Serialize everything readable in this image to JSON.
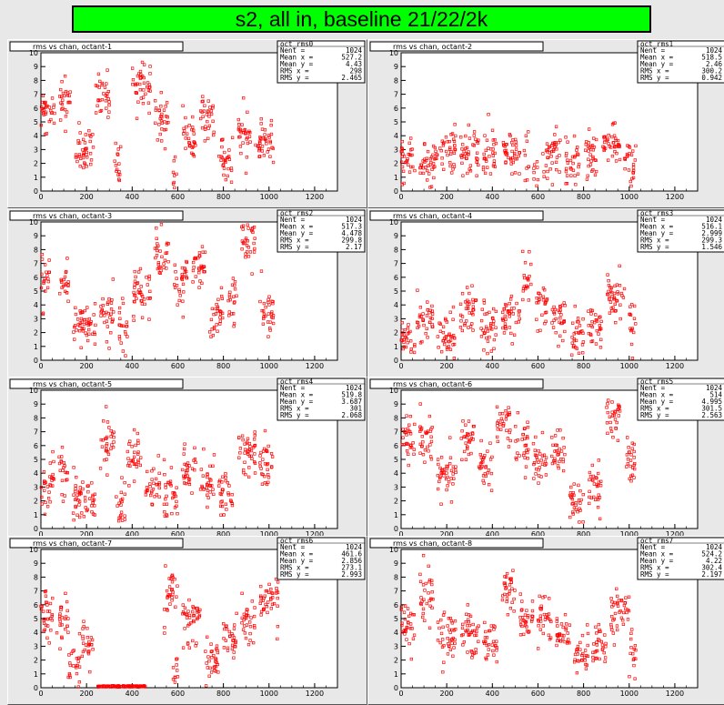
{
  "banner_title": "s2, all in, baseline 21/22/2k",
  "colors": {
    "banner_bg": "#00ff00",
    "marker": "#ff0000",
    "frame_bg": "#e8e8e8",
    "plot_bg": "#ffffff"
  },
  "stat_labels": [
    "Nent =",
    "Mean x =",
    "Mean y =",
    "RMS x =",
    "RMS y ="
  ],
  "axes": {
    "xticks": [
      "0",
      "200",
      "400",
      "600",
      "800",
      "1000",
      "1200"
    ],
    "yticks": [
      "0",
      "1",
      "2",
      "3",
      "4",
      "5",
      "6",
      "7",
      "8",
      "9",
      "10"
    ],
    "xlim": [
      0,
      1300
    ],
    "ylim": [
      0,
      10
    ]
  },
  "chart_data": [
    {
      "type": "scatter",
      "title": "rms vs chan, octant-1",
      "hist_name": "oct_rms0",
      "stats": [
        "1024",
        "527.2",
        "4.43",
        "298",
        "2.465"
      ],
      "clusters": [
        [
          0,
          60,
          5.5
        ],
        [
          80,
          130,
          6.8
        ],
        [
          150,
          230,
          3.0
        ],
        [
          240,
          300,
          6.5
        ],
        [
          320,
          350,
          2.0
        ],
        [
          400,
          480,
          7.8
        ],
        [
          500,
          560,
          5.5
        ],
        [
          580,
          600,
          1.3
        ],
        [
          620,
          680,
          4.0
        ],
        [
          700,
          760,
          5.5
        ],
        [
          780,
          840,
          2.0
        ],
        [
          860,
          920,
          4.0
        ],
        [
          940,
          1020,
          3.6
        ]
      ],
      "xlim": [
        0,
        1300
      ],
      "ylim": [
        0,
        10
      ]
    },
    {
      "type": "scatter",
      "title": "rms vs chan, octant-2",
      "hist_name": "oct_rms1",
      "stats": [
        "1024",
        "518.5",
        "2.46",
        "300.2",
        "0.942"
      ],
      "clusters": [
        [
          0,
          60,
          2.4
        ],
        [
          80,
          160,
          2.2
        ],
        [
          170,
          240,
          2.7
        ],
        [
          260,
          340,
          2.8
        ],
        [
          360,
          420,
          2.5
        ],
        [
          440,
          520,
          3.0
        ],
        [
          540,
          560,
          2.4
        ],
        [
          580,
          600,
          1.0
        ],
        [
          620,
          700,
          2.8
        ],
        [
          720,
          780,
          2.0
        ],
        [
          800,
          860,
          2.6
        ],
        [
          880,
          960,
          3.6
        ],
        [
          980,
          1030,
          2.5
        ]
      ],
      "xlim": [
        0,
        1300
      ],
      "ylim": [
        0,
        10
      ]
    },
    {
      "type": "scatter",
      "title": "rms vs chan, octant-3",
      "hist_name": "oct_rms2",
      "stats": [
        "1024",
        "517.3",
        "4.478",
        "299.8",
        "2.17"
      ],
      "clusters": [
        [
          0,
          40,
          5.8
        ],
        [
          80,
          120,
          5.5
        ],
        [
          140,
          240,
          3.0
        ],
        [
          260,
          320,
          3.5
        ],
        [
          340,
          380,
          2.0
        ],
        [
          400,
          480,
          4.8
        ],
        [
          500,
          560,
          7.5
        ],
        [
          580,
          640,
          5.5
        ],
        [
          660,
          720,
          6.8
        ],
        [
          740,
          800,
          3.2
        ],
        [
          820,
          860,
          4.2
        ],
        [
          880,
          940,
          8.6
        ],
        [
          960,
          1020,
          3.8
        ]
      ],
      "xlim": [
        0,
        1300
      ],
      "ylim": [
        0,
        10
      ]
    },
    {
      "type": "scatter",
      "title": "rms vs chan, octant-4",
      "hist_name": "oct_rms3",
      "stats": [
        "1024",
        "516.1",
        "2.999",
        "299.3",
        "1.546"
      ],
      "clusters": [
        [
          0,
          60,
          1.5
        ],
        [
          70,
          140,
          3.0
        ],
        [
          160,
          240,
          2.0
        ],
        [
          260,
          330,
          3.5
        ],
        [
          350,
          420,
          2.5
        ],
        [
          440,
          520,
          3.0
        ],
        [
          530,
          570,
          5.5
        ],
        [
          590,
          640,
          4.0
        ],
        [
          660,
          720,
          3.0
        ],
        [
          740,
          800,
          2.0
        ],
        [
          820,
          880,
          2.6
        ],
        [
          900,
          980,
          4.5
        ],
        [
          1000,
          1030,
          3.0
        ]
      ],
      "xlim": [
        0,
        1300
      ],
      "ylim": [
        0,
        10
      ]
    },
    {
      "type": "scatter",
      "title": "rms vs chan, octant-5",
      "hist_name": "oct_rms4",
      "stats": [
        "1024",
        "519.8",
        "3.687",
        "301",
        "2.068"
      ],
      "clusters": [
        [
          0,
          60,
          3.0
        ],
        [
          80,
          120,
          3.8
        ],
        [
          140,
          240,
          2.0
        ],
        [
          260,
          320,
          6.0
        ],
        [
          330,
          370,
          1.5
        ],
        [
          380,
          440,
          5.2
        ],
        [
          460,
          520,
          2.8
        ],
        [
          540,
          600,
          2.3
        ],
        [
          620,
          680,
          4.2
        ],
        [
          700,
          760,
          3.5
        ],
        [
          780,
          840,
          2.2
        ],
        [
          860,
          940,
          5.5
        ],
        [
          960,
          1020,
          4.5
        ]
      ],
      "xlim": [
        0,
        1300
      ],
      "ylim": [
        0,
        10
      ]
    },
    {
      "type": "scatter",
      "title": "rms vs chan, octant-6",
      "hist_name": "oct_rms5",
      "stats": [
        "1024",
        "514",
        "4.995",
        "301.5",
        "2.563"
      ],
      "clusters": [
        [
          0,
          60,
          6.5
        ],
        [
          80,
          140,
          6.5
        ],
        [
          160,
          240,
          4.0
        ],
        [
          260,
          320,
          6.5
        ],
        [
          340,
          400,
          4.5
        ],
        [
          420,
          480,
          7.5
        ],
        [
          500,
          560,
          6.0
        ],
        [
          580,
          640,
          5.0
        ],
        [
          660,
          720,
          5.5
        ],
        [
          740,
          800,
          2.0
        ],
        [
          820,
          880,
          3.0
        ],
        [
          900,
          960,
          8.0
        ],
        [
          980,
          1030,
          5.0
        ]
      ],
      "xlim": [
        0,
        1300
      ],
      "ylim": [
        0,
        10
      ]
    },
    {
      "type": "scatter",
      "title": "rms vs chan, octant-7",
      "hist_name": "oct_rms6",
      "stats": [
        "1024",
        "461.6",
        "2.856",
        "273.1",
        "2.993"
      ],
      "clusters": [
        [
          0,
          60,
          5.5
        ],
        [
          70,
          120,
          5.0
        ],
        [
          120,
          170,
          1.8
        ],
        [
          180,
          230,
          3.2
        ],
        [
          250,
          460,
          0.1
        ],
        [
          580,
          600,
          1.0
        ],
        [
          540,
          600,
          7.0
        ],
        [
          620,
          700,
          5.0
        ],
        [
          720,
          780,
          2.0
        ],
        [
          800,
          860,
          3.5
        ],
        [
          880,
          940,
          5.2
        ],
        [
          960,
          1040,
          6.5
        ]
      ],
      "xlim": [
        0,
        1300
      ],
      "ylim": [
        0,
        10
      ]
    },
    {
      "type": "scatter",
      "title": "rms vs chan, octant-8",
      "hist_name": "oct_rms7",
      "stats": [
        "1024",
        "524.2",
        "4.22",
        "302.4",
        "2.197"
      ],
      "clusters": [
        [
          0,
          60,
          4.5
        ],
        [
          80,
          140,
          6.5
        ],
        [
          160,
          240,
          3.5
        ],
        [
          260,
          340,
          4.0
        ],
        [
          360,
          420,
          3.5
        ],
        [
          440,
          500,
          7.0
        ],
        [
          520,
          580,
          5.0
        ],
        [
          600,
          660,
          5.0
        ],
        [
          680,
          740,
          3.8
        ],
        [
          760,
          820,
          2.2
        ],
        [
          840,
          900,
          3.0
        ],
        [
          920,
          1000,
          5.5
        ],
        [
          1000,
          1030,
          2.5
        ]
      ],
      "xlim": [
        0,
        1300
      ],
      "ylim": [
        0,
        10
      ]
    }
  ]
}
